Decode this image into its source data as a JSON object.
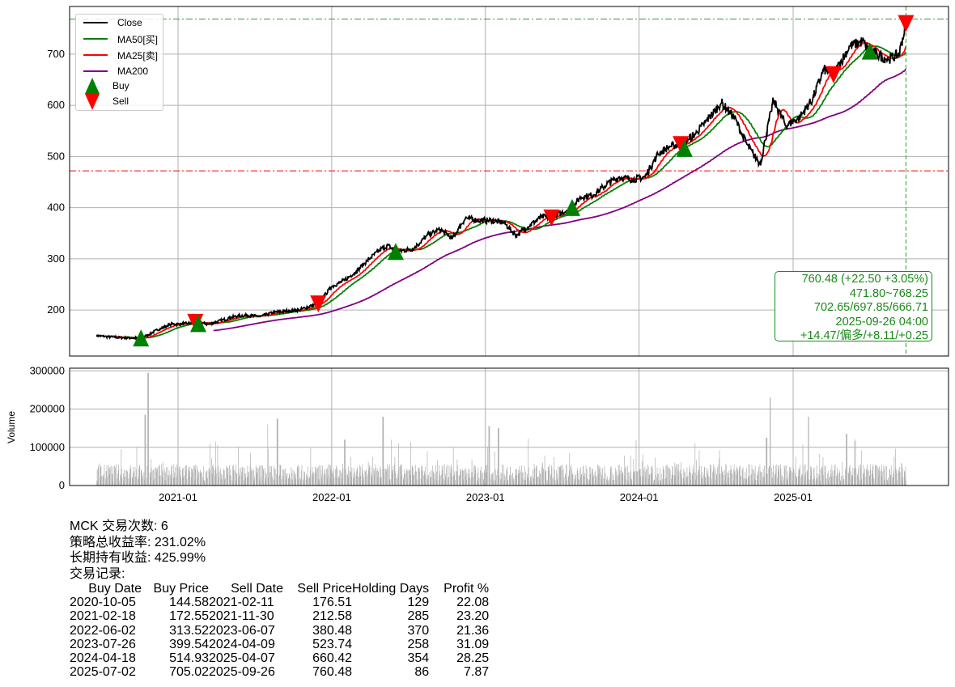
{
  "chart_data": [
    {
      "type": "line",
      "title": "",
      "ylim": [
        110,
        793
      ],
      "yticks": [
        200,
        300,
        400,
        500,
        600,
        700
      ],
      "xticks": [
        "2021-01",
        "2022-01",
        "2023-01",
        "2024-01",
        "2025-01"
      ],
      "grid": true,
      "legend_position": "top-left",
      "legend": [
        {
          "label": "Close",
          "color": "#000000"
        },
        {
          "label": "MA50[买]",
          "color": "#008000"
        },
        {
          "label": "MA25[卖]",
          "color": "#ff0000"
        },
        {
          "label": "MA200",
          "color": "#800080"
        },
        {
          "label": "Buy",
          "color": "#008000",
          "marker": "triangle-up"
        },
        {
          "label": "Sell",
          "color": "#ff0000",
          "marker": "triangle-down"
        }
      ],
      "close_monthly": {
        "dates": [
          "2020-06-20",
          "2020-07-15",
          "2020-08-15",
          "2020-09-15",
          "2020-10-05",
          "2020-11-15",
          "2020-12-15",
          "2021-01-15",
          "2021-02-11",
          "2021-03-15",
          "2021-04-15",
          "2021-05-15",
          "2021-06-15",
          "2021-07-15",
          "2021-08-15",
          "2021-09-15",
          "2021-10-15",
          "2021-11-30",
          "2021-12-31",
          "2022-01-31",
          "2022-02-28",
          "2022-03-31",
          "2022-04-30",
          "2022-05-15",
          "2022-06-02",
          "2022-07-15",
          "2022-08-15",
          "2022-09-15",
          "2022-10-15",
          "2022-11-15",
          "2022-12-15",
          "2023-01-15",
          "2023-02-15",
          "2023-03-15",
          "2023-04-15",
          "2023-05-15",
          "2023-06-07",
          "2023-07-26",
          "2023-08-15",
          "2023-09-15",
          "2023-10-15",
          "2023-11-15",
          "2023-12-15",
          "2024-01-15",
          "2024-02-15",
          "2024-03-15",
          "2024-04-09",
          "2024-05-15",
          "2024-06-15",
          "2024-07-15",
          "2024-08-15",
          "2024-09-15",
          "2024-10-15",
          "2024-11-15",
          "2024-12-15",
          "2025-01-15",
          "2025-02-15",
          "2025-03-15",
          "2025-04-07",
          "2025-05-15",
          "2025-06-15",
          "2025-07-02",
          "2025-08-15",
          "2025-09-10",
          "2025-09-26"
        ],
        "values": [
          150,
          148,
          146,
          145,
          144.58,
          162,
          172,
          173,
          176.51,
          172,
          180,
          187,
          190,
          187,
          195,
          198,
          200,
          212.58,
          245,
          258,
          275,
          300,
          320,
          326,
          313.52,
          320,
          345,
          358,
          340,
          380,
          375,
          375,
          370,
          345,
          365,
          382,
          380.48,
          399.54,
          420,
          425,
          445,
          460,
          455,
          460,
          505,
          520,
          523.74,
          545,
          575,
          605,
          575,
          520,
          485,
          610,
          560,
          575,
          610,
          670,
          660.42,
          715,
          725,
          705.02,
          690,
          700,
          760.48
        ]
      },
      "ma_windows_days": {
        "MA50": 50,
        "MA25": 25,
        "MA200": 200
      },
      "hlines": [
        {
          "value": 768.25,
          "color": "#2ca02c"
        },
        {
          "value": 471.8,
          "color": "#ff0000"
        }
      ],
      "vline_date": "2025-09-26",
      "trades": [
        {
          "buy_date": "2020-10-05",
          "buy_price": 144.58,
          "sell_date": "2021-02-11",
          "sell_price": 176.51
        },
        {
          "buy_date": "2021-02-18",
          "buy_price": 172.55,
          "sell_date": "2021-11-30",
          "sell_price": 212.58
        },
        {
          "buy_date": "2022-06-02",
          "buy_price": 313.52,
          "sell_date": "2023-06-07",
          "sell_price": 380.48
        },
        {
          "buy_date": "2023-07-26",
          "buy_price": 399.54,
          "sell_date": "2024-04-09",
          "sell_price": 523.74
        },
        {
          "buy_date": "2024-04-18",
          "buy_price": 514.93,
          "sell_date": "2025-04-07",
          "sell_price": 660.42
        },
        {
          "buy_date": "2025-07-02",
          "buy_price": 705.02,
          "sell_date": "2025-09-26",
          "sell_price": 760.48
        }
      ]
    },
    {
      "type": "bar",
      "ylabel": "Volume",
      "ylim": [
        0,
        307000
      ],
      "yticks": [
        0,
        100000,
        200000,
        300000
      ],
      "xticks": [
        "2021-01",
        "2022-01",
        "2023-01",
        "2024-01",
        "2025-01"
      ],
      "color": "#b0b0b0",
      "typical_volume": 40000,
      "spikes": [
        {
          "date": "2020-10-15",
          "value": 185000
        },
        {
          "date": "2020-10-22",
          "value": 295000
        },
        {
          "date": "2021-08-01",
          "value": 160000
        },
        {
          "date": "2021-08-25",
          "value": 175000
        },
        {
          "date": "2022-05-03",
          "value": 180000
        },
        {
          "date": "2022-02-01",
          "value": 120000
        },
        {
          "date": "2023-01-10",
          "value": 155000
        },
        {
          "date": "2023-02-01",
          "value": 150000
        },
        {
          "date": "2024-11-08",
          "value": 230000
        },
        {
          "date": "2024-10-30",
          "value": 125000
        },
        {
          "date": "2025-02-07",
          "value": 180000
        },
        {
          "date": "2025-05-08",
          "value": 135000
        }
      ]
    }
  ],
  "annotation": {
    "line1": "760.48 (+22.50 +3.05%)",
    "line2": "471.80~768.25",
    "line3": "702.65/697.85/666.71",
    "line4": "2025-09-26 04:00",
    "line5": "+14.47/偏多/+8.11/+0.25"
  },
  "summary": {
    "trades": "MCK 交易次数: 6",
    "strategy_return": "策略总收益率: 231.02%",
    "hold_return": "长期持有收益: 425.99%",
    "records_label": "交易记录:"
  },
  "table": {
    "headers": [
      "Buy Date",
      "Buy Price",
      "Sell Date",
      "Sell Price",
      "Holding Days",
      "Profit %"
    ],
    "rows": [
      [
        "2020-10-05",
        "144.58",
        "2021-02-11",
        "176.51",
        "129",
        "22.08"
      ],
      [
        "2021-02-18",
        "172.55",
        "2021-11-30",
        "212.58",
        "285",
        "23.20"
      ],
      [
        "2022-06-02",
        "313.52",
        "2023-06-07",
        "380.48",
        "370",
        "21.36"
      ],
      [
        "2023-07-26",
        "399.54",
        "2024-04-09",
        "523.74",
        "258",
        "31.09"
      ],
      [
        "2024-04-18",
        "514.93",
        "2025-04-07",
        "660.42",
        "354",
        "28.25"
      ],
      [
        "2025-07-02",
        "705.02",
        "2025-09-26",
        "760.48",
        "86",
        "7.87"
      ]
    ]
  }
}
